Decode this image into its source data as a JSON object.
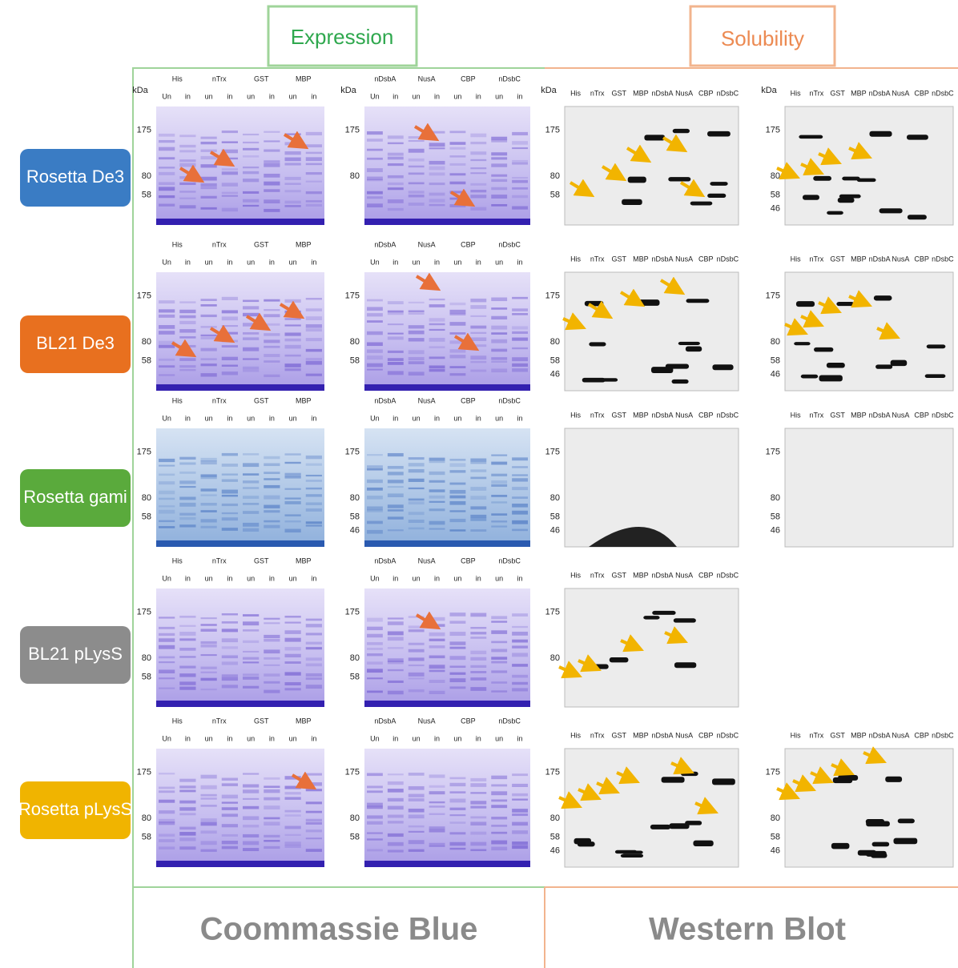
{
  "header": {
    "expression": "Expression",
    "solubility": "Solubility"
  },
  "footer": {
    "coomassie": "Coommassie Blue",
    "western": "Western Blot"
  },
  "rows": [
    {
      "strain": "Rosetta De3",
      "panels": [
        {
          "kda": "kDa",
          "proteins": [
            "His",
            "nTrx",
            "GST",
            "MBP"
          ],
          "lanes": [
            "Un",
            "in",
            "un",
            "in",
            "un",
            "in",
            "un",
            "in"
          ],
          "markers": [
            175,
            80,
            58
          ]
        },
        {
          "kda": "kDa",
          "proteins": [
            "nDsbA",
            "NusA",
            "CBP",
            "nDsbC"
          ],
          "lanes": [
            "Un",
            "in",
            "un",
            "in",
            "un",
            "in",
            "un",
            "in"
          ],
          "markers": [
            175,
            80
          ]
        },
        {
          "kda": "kDa",
          "proteins": [
            "His",
            "nTrx",
            "GST",
            "MBP",
            "nDsbA",
            "NusA",
            "CBP",
            "nDsbC"
          ],
          "markers": [
            175,
            80,
            58
          ]
        },
        {
          "kda": "kDa",
          "proteins": [
            "His",
            "nTrx",
            "GST",
            "MBP",
            "nDsbA",
            "NusA",
            "CBP",
            "nDsbC"
          ],
          "markers": [
            175,
            80,
            58,
            46
          ]
        }
      ]
    },
    {
      "strain": "BL21 De3",
      "panels": [
        {
          "proteins": [
            "His",
            "nTrx",
            "GST",
            "MBP"
          ],
          "lanes": [
            "Un",
            "in",
            "un",
            "in",
            "un",
            "in",
            "un",
            "in"
          ],
          "markers": [
            175,
            80,
            58
          ]
        },
        {
          "proteins": [
            "nDsbA",
            "NusA",
            "CBP",
            "nDsbC"
          ],
          "lanes": [
            "Un",
            "in",
            "un",
            "in",
            "un",
            "in",
            "un",
            "in"
          ],
          "markers": [
            175,
            80,
            58
          ]
        },
        {
          "proteins": [
            "His",
            "nTrx",
            "GST",
            "MBP",
            "nDsbA",
            "NusA",
            "CBP",
            "nDsbC"
          ],
          "markers": [
            175,
            80,
            58,
            46
          ]
        },
        {
          "proteins": [
            "His",
            "nTrx",
            "GST",
            "MBP",
            "nDsbA",
            "NusA",
            "CBP",
            "nDsbC"
          ],
          "markers": [
            175,
            80,
            58,
            46
          ]
        }
      ]
    },
    {
      "strain": "Rosetta gami",
      "panels": [
        {
          "proteins": [
            "His",
            "nTrx",
            "GST",
            "MBP"
          ],
          "lanes": [
            "Un",
            "in",
            "un",
            "in",
            "un",
            "in",
            "un",
            "in"
          ],
          "markers": [
            175,
            80,
            58
          ]
        },
        {
          "proteins": [
            "nDsbA",
            "NusA",
            "CBP",
            "nDsbC"
          ],
          "lanes": [
            "Un",
            "in",
            "un",
            "in",
            "un",
            "in",
            "un",
            "in"
          ],
          "markers": [
            175,
            80,
            58,
            46
          ]
        },
        {
          "proteins": [
            "His",
            "nTrx",
            "GST",
            "MBP",
            "nDsbA",
            "NusA",
            "CBP",
            "nDsbC"
          ],
          "markers": [
            175,
            80,
            58,
            46
          ]
        },
        {
          "proteins": [
            "His",
            "nTrx",
            "GST",
            "MBP",
            "nDsbA",
            "NusA",
            "CBP",
            "nDsbC"
          ],
          "markers": [
            175,
            80,
            58,
            46
          ]
        }
      ]
    },
    {
      "strain": "BL21 pLysS",
      "panels": [
        {
          "proteins": [
            "His",
            "nTrx",
            "GST",
            "MBP"
          ],
          "lanes": [
            "Un",
            "in",
            "un",
            "in",
            "un",
            "in",
            "un",
            "in"
          ],
          "markers": [
            175,
            80,
            58
          ]
        },
        {
          "proteins": [
            "nDsbA",
            "NusA",
            "CBP",
            "nDsbC"
          ],
          "lanes": [
            "Un",
            "in",
            "un",
            "in",
            "un",
            "in",
            "un",
            "in"
          ],
          "markers": [
            175,
            80,
            58
          ]
        },
        {
          "proteins": [
            "His",
            "nTrx",
            "GST",
            "MBP",
            "nDsbA",
            "NusA",
            "CBP",
            "nDsbC"
          ],
          "markers": [
            175,
            80
          ]
        }
      ]
    },
    {
      "strain": "Rosetta pLysS",
      "panels": [
        {
          "proteins": [
            "His",
            "nTrx",
            "GST",
            "MBP"
          ],
          "lanes": [
            "Un",
            "in",
            "un",
            "in",
            "un",
            "in",
            "un",
            "in"
          ],
          "markers": [
            175,
            80,
            58
          ]
        },
        {
          "proteins": [
            "nDsbA",
            "NusA",
            "CBP",
            "nDsbC"
          ],
          "lanes": [
            "Un",
            "in",
            "un",
            "in",
            "un",
            "in",
            "un",
            "in"
          ],
          "markers": [
            175,
            80,
            58
          ]
        },
        {
          "proteins": [
            "His",
            "nTrx",
            "GST",
            "MBP",
            "nDsbA",
            "NusA",
            "CBP",
            "nDsbC"
          ],
          "markers": [
            175,
            80,
            58,
            46
          ]
        },
        {
          "proteins": [
            "His",
            "nTrx",
            "GST",
            "MBP",
            "nDsbA",
            "NusA",
            "CBP",
            "nDsbC"
          ],
          "markers": [
            175,
            80,
            58,
            46
          ]
        }
      ]
    }
  ]
}
